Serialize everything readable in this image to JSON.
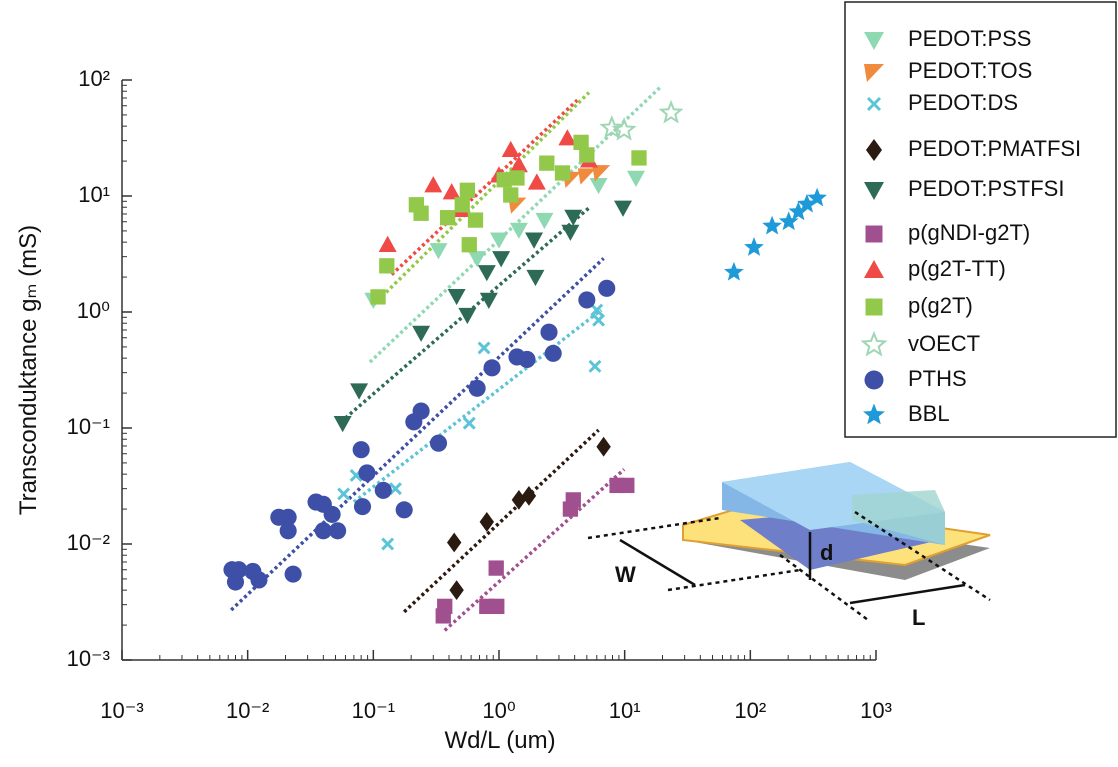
{
  "chart_data": {
    "type": "scatter",
    "x_label": "Wd/L (um)",
    "y_label": "Transconduktance gₘ (mS)",
    "log_x": true,
    "log_y": true,
    "xlim": [
      0.001,
      1000
    ],
    "ylim": [
      0.001,
      100
    ],
    "xticks": [
      {
        "value": 0.001,
        "label": "10⁻³"
      },
      {
        "value": 0.01,
        "label": "10⁻²"
      },
      {
        "value": 0.1,
        "label": "10⁻¹"
      },
      {
        "value": 1,
        "label": "10⁰"
      },
      {
        "value": 10,
        "label": "10¹"
      },
      {
        "value": 100,
        "label": "10²"
      },
      {
        "value": 1000,
        "label": "10³"
      }
    ],
    "yticks": [
      {
        "value": 0.001,
        "label": "10⁻³"
      },
      {
        "value": 0.01,
        "label": "10⁻²"
      },
      {
        "value": 0.1,
        "label": "10⁻¹"
      },
      {
        "value": 1,
        "label": "10⁰"
      },
      {
        "value": 10,
        "label": "10¹"
      },
      {
        "value": 100,
        "label": "10²"
      }
    ],
    "legend": "upper right",
    "annotations": [
      "W",
      "d",
      "L"
    ],
    "series": [
      {
        "name": "PEDOT:PSS",
        "color": "#8fd9b2",
        "marker": "triangle-down",
        "x": [
          0.1,
          0.33,
          0.67,
          1.0,
          1.44,
          2.3,
          6.2,
          12.3
        ],
        "values": [
          1.27,
          3.4,
          2.9,
          4.2,
          5.1,
          6.2,
          12.4,
          14.3
        ],
        "fit": {
          "x": [
            0.094,
            19.5
          ],
          "values": [
            0.37,
            88
          ]
        }
      },
      {
        "name": "PEDOT:TOS",
        "color": "#f08a3c",
        "marker": "triangle-left",
        "x": [
          1.4,
          3.8,
          5.0,
          6.5
        ],
        "values": [
          8.4,
          14,
          15,
          16
        ]
      },
      {
        "name": "PEDOT:DS",
        "color": "#5bc4d6",
        "marker": "x",
        "x": [
          0.058,
          0.073,
          0.13,
          0.15,
          0.58,
          0.76,
          5.8,
          6.0,
          6.2
        ],
        "values": [
          0.027,
          0.039,
          0.01,
          0.03,
          0.11,
          0.49,
          0.34,
          1.04,
          0.85
        ],
        "fit": {
          "x": [
            0.07,
            6.5
          ],
          "values": [
            0.023,
            1.04
          ]
        }
      },
      {
        "name": "PEDOT:PMATFSI",
        "color": "#2b1a10",
        "marker": "diamond",
        "x": [
          0.44,
          0.46,
          0.8,
          1.44,
          1.73,
          6.8
        ],
        "values": [
          0.0103,
          0.004,
          0.0155,
          0.024,
          0.026,
          0.069
        ],
        "fit": {
          "x": [
            0.176,
            6.2
          ],
          "values": [
            0.0026,
            0.096
          ]
        }
      },
      {
        "name": "PEDOT:PSTFSI",
        "color": "#2e6b56",
        "marker": "triangle-down",
        "x": [
          0.057,
          0.077,
          0.24,
          0.46,
          0.56,
          0.8,
          0.83,
          1.04,
          1.9,
          1.95,
          3.7,
          3.9,
          9.7
        ],
        "values": [
          0.11,
          0.21,
          0.66,
          1.37,
          0.94,
          2.2,
          1.27,
          2.9,
          4.2,
          2.0,
          4.9,
          6.6,
          7.9
        ],
        "fit": {
          "x": [
            0.06,
            5.2
          ],
          "values": [
            0.122,
            7.9
          ]
        }
      },
      {
        "name": "p(gNDI-g2T)",
        "color": "#a0508f",
        "marker": "square",
        "x": [
          0.36,
          0.37,
          0.8,
          0.95,
          0.96,
          3.7,
          3.9,
          8.7,
          10.4
        ],
        "values": [
          0.0024,
          0.0029,
          0.0029,
          0.0062,
          0.0029,
          0.02,
          0.024,
          0.032,
          0.032
        ],
        "fit": {
          "x": [
            0.37,
            9.9
          ],
          "values": [
            0.0018,
            0.044
          ]
        }
      },
      {
        "name": "p(g2T-TT)",
        "color": "#ef4a45",
        "marker": "triangle-up",
        "x": [
          0.13,
          0.3,
          0.42,
          0.5,
          1.0,
          1.24,
          1.44,
          2.0,
          3.5,
          5.2
        ],
        "values": [
          3.8,
          12.4,
          10.8,
          7.6,
          15.1,
          25,
          18.5,
          13.1,
          31.5,
          20.3
        ],
        "fit": {
          "x": [
            0.14,
            4.2
          ],
          "values": [
            2.1,
            67
          ]
        }
      },
      {
        "name": "p(g2T)",
        "color": "#93c94a",
        "marker": "square",
        "x": [
          0.109,
          0.128,
          0.22,
          0.24,
          0.39,
          0.51,
          0.56,
          0.58,
          0.65,
          1.1,
          1.24,
          1.39,
          2.4,
          3.2,
          4.5,
          5.0,
          13
        ],
        "values": [
          1.35,
          2.5,
          8.4,
          7.1,
          6.5,
          8.4,
          11.2,
          3.8,
          6.2,
          13.8,
          10.2,
          14.3,
          19.2,
          15.8,
          29,
          22.6,
          21.3
        ],
        "fit": {
          "x": [
            0.1,
            5.2
          ],
          "values": [
            1.15,
            78
          ]
        }
      },
      {
        "name": "vOECT",
        "color": "#9fd6b4",
        "marker": "star-open",
        "x": [
          7.9,
          9.9,
          23.4
        ],
        "values": [
          38.5,
          37,
          52
        ]
      },
      {
        "name": "PTHS",
        "color": "#3d4fa6",
        "marker": "circle",
        "x": [
          0.0075,
          0.0085,
          0.008,
          0.011,
          0.0123,
          0.0177,
          0.021,
          0.023,
          0.021,
          0.035,
          0.04,
          0.04,
          0.047,
          0.052,
          0.08,
          0.089,
          0.12,
          0.176,
          0.082,
          0.21,
          0.24,
          0.33,
          0.67,
          0.88,
          1.39,
          1.67,
          2.5,
          2.7,
          5.0,
          7.2
        ],
        "values": [
          0.006,
          0.006,
          0.0047,
          0.0058,
          0.0049,
          0.017,
          0.017,
          0.0055,
          0.013,
          0.023,
          0.022,
          0.013,
          0.018,
          0.013,
          0.065,
          0.041,
          0.029,
          0.0197,
          0.021,
          0.113,
          0.14,
          0.074,
          0.22,
          0.33,
          0.41,
          0.39,
          0.67,
          0.44,
          1.27,
          1.6
        ],
        "fit": {
          "x": [
            0.0074,
            6.8
          ],
          "values": [
            0.0027,
            2.9
          ]
        }
      },
      {
        "name": "BBL",
        "color": "#1e9ad8",
        "marker": "star",
        "x": [
          74,
          107,
          149,
          202,
          241,
          282,
          340
        ],
        "values": [
          2.2,
          3.6,
          5.5,
          6.0,
          7.3,
          8.5,
          9.6
        ]
      }
    ]
  }
}
